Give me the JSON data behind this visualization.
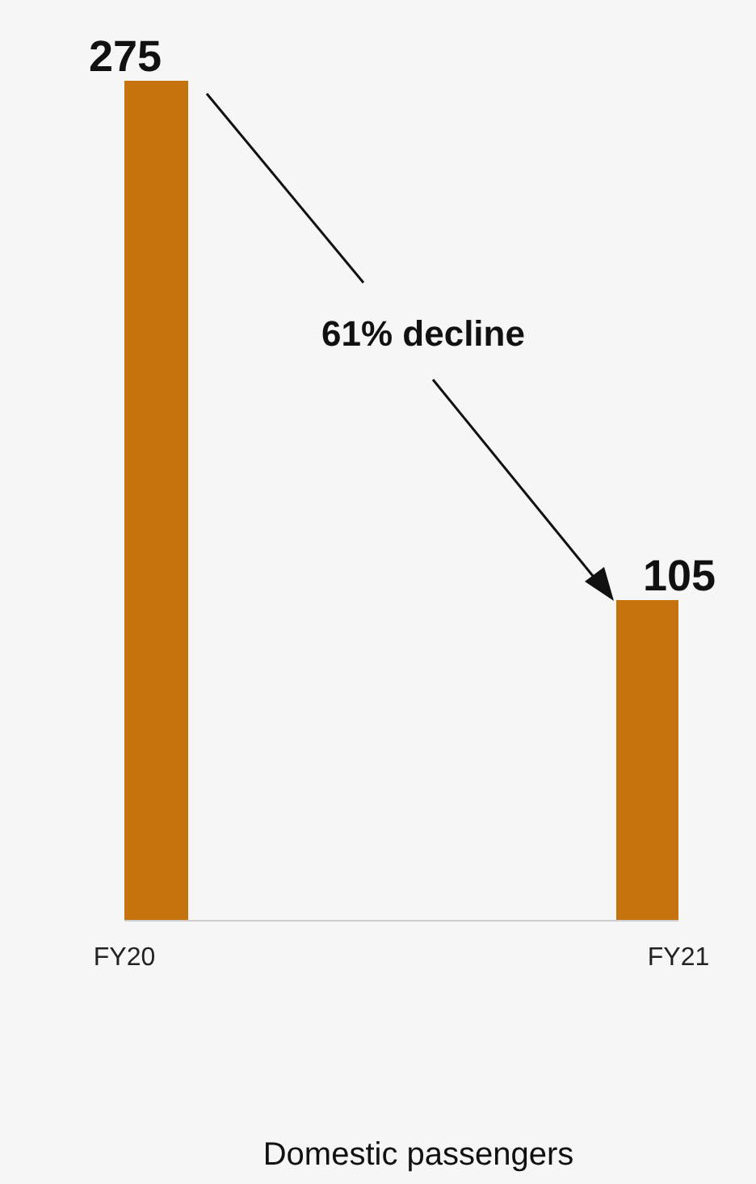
{
  "chart_data": {
    "type": "bar",
    "categories": [
      "FY20",
      "FY21"
    ],
    "values": [
      275,
      105
    ],
    "color": "#c5730e",
    "data_labels": true,
    "annotations": [
      "61% decline",
      "Domestic passengers"
    ]
  }
}
